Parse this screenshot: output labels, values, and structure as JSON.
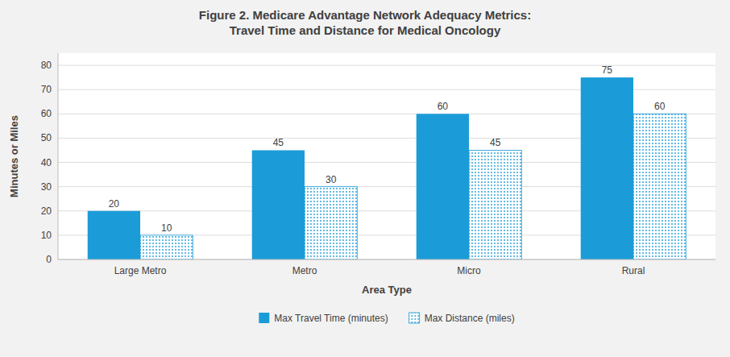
{
  "chart_data": {
    "type": "bar",
    "title": "Figure 2. Medicare Advantage Network Adequacy Metrics:\nTravel Time and Distance for Medical Oncology",
    "categories": [
      "Large Metro",
      "Metro",
      "Micro",
      "Rural"
    ],
    "series": [
      {
        "name": "Max Travel Time (minutes)",
        "color": "#1B9CD8",
        "values": [
          20,
          45,
          60,
          75
        ]
      },
      {
        "name": "Max Distance (miles)",
        "color": "#1B9CD8",
        "values": [
          10,
          30,
          45,
          60
        ]
      }
    ],
    "xlabel": "Area Type",
    "ylabel": "Minutes or Miles",
    "ylim": [
      0,
      85
    ],
    "yticks": [
      0,
      10,
      20,
      30,
      40,
      50,
      60,
      70,
      80
    ],
    "grid": true,
    "legend": "bottom",
    "data_labels": true
  }
}
